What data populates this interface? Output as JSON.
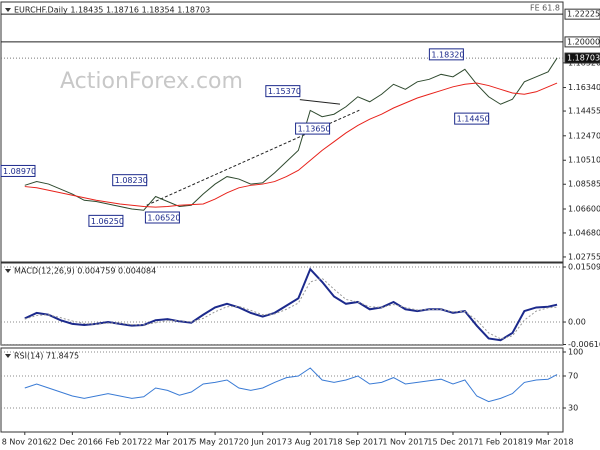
{
  "chart_data": [
    {
      "type": "line",
      "title": "EURCHF.Daily 1.18435 1.18716 1.18354 1.18703",
      "watermark": "ActionForex.com",
      "x": [
        0,
        8,
        16,
        24,
        32,
        40,
        48,
        56,
        64,
        72,
        80,
        88,
        96,
        104,
        112,
        120,
        128,
        136,
        144,
        152,
        160,
        168,
        176,
        184,
        192,
        200,
        208,
        216,
        224,
        232,
        240,
        248,
        256,
        264,
        272,
        280,
        288,
        296,
        304,
        312,
        320,
        328,
        336,
        344,
        352,
        358
      ],
      "xlim": [
        -16,
        362
      ],
      "ylim": [
        1.0235,
        1.232
      ],
      "yticks": [
        1.02755,
        {
          "value": 1.0468,
          "label": "1.04680"
        },
        {
          "value": 1.066,
          "label": "1.06600"
        },
        1.08585,
        {
          "value": 1.1051,
          "label": "1.10510"
        },
        {
          "value": 1.1247,
          "label": "1.12470"
        },
        1.14455,
        {
          "value": 1.1634,
          "label": "1.16340"
        },
        {
          "value": 1.1832,
          "label": "1.18320"
        }
      ],
      "series": [
        {
          "color": "#2f4a2f",
          "values": [
            1.085,
            1.088,
            1.086,
            1.082,
            1.078,
            1.073,
            1.072,
            1.07,
            1.068,
            1.066,
            1.065,
            1.076,
            1.072,
            1.068,
            1.069,
            1.078,
            1.086,
            1.092,
            1.09,
            1.086,
            1.087,
            1.095,
            1.104,
            1.113,
            1.145,
            1.14,
            1.142,
            1.148,
            1.156,
            1.152,
            1.158,
            1.166,
            1.162,
            1.168,
            1.17,
            1.174,
            1.172,
            1.178,
            1.166,
            1.156,
            1.15,
            1.154,
            1.168,
            1.172,
            1.176,
            1.18703
          ]
        },
        {
          "color": "#e8221b",
          "values": [
            1.084,
            1.083,
            1.081,
            1.079,
            1.077,
            1.075,
            1.073,
            1.0715,
            1.07,
            1.069,
            1.068,
            1.0675,
            1.068,
            1.069,
            1.0695,
            1.07,
            1.074,
            1.079,
            1.083,
            1.085,
            1.086,
            1.088,
            1.092,
            1.097,
            1.105,
            1.113,
            1.12,
            1.127,
            1.133,
            1.138,
            1.142,
            1.147,
            1.151,
            1.155,
            1.158,
            1.161,
            1.164,
            1.166,
            1.167,
            1.165,
            1.162,
            1.159,
            1.158,
            1.16,
            1.164,
            1.167
          ]
        }
      ],
      "levels": [
        {
          "value": 1.22225,
          "label": "1.22225",
          "note": "FE 61.8"
        },
        {
          "value": 1.2,
          "label": "1.20000"
        },
        {
          "value": 1.18703,
          "label": "1.18703",
          "current": true
        }
      ],
      "annotations": [
        {
          "x": 4,
          "value": 1.0897,
          "label": "1.08970",
          "pos": "above"
        },
        {
          "x": 82,
          "value": 1.0823,
          "label": "1.08230",
          "pos": "above"
        },
        {
          "x": 66,
          "value": 1.0625,
          "label": "1.06250",
          "pos": "below"
        },
        {
          "x": 104,
          "value": 1.0652,
          "label": "1.06520",
          "pos": "below"
        },
        {
          "x": 185,
          "value": 1.1537,
          "label": "1.15370",
          "pos": "above"
        },
        {
          "x": 205,
          "value": 1.1365,
          "label": "1.13650",
          "pos": "below"
        },
        {
          "x": 295,
          "value": 1.1832,
          "label": "1.18320",
          "pos": "above"
        },
        {
          "x": 312,
          "value": 1.1445,
          "label": "1.14450",
          "pos": "below"
        }
      ],
      "trendlines": [
        {
          "x": [
            82,
            225
          ],
          "y": [
            1.069,
            1.1452
          ],
          "style": "dashed"
        },
        {
          "x": [
            185,
            212
          ],
          "y": [
            1.1537,
            1.1501
          ],
          "style": "solid"
        }
      ]
    },
    {
      "type": "line",
      "title": "MACD(12,26,9) 0.004759 0.004084",
      "x": [
        0,
        8,
        16,
        24,
        32,
        40,
        48,
        56,
        64,
        72,
        80,
        88,
        96,
        104,
        112,
        120,
        128,
        136,
        144,
        152,
        160,
        168,
        176,
        184,
        192,
        200,
        208,
        216,
        224,
        232,
        240,
        248,
        256,
        264,
        272,
        280,
        288,
        296,
        304,
        312,
        320,
        328,
        336,
        344,
        352,
        358
      ],
      "xlim": [
        -16,
        362
      ],
      "ylim": [
        -0.0063,
        0.01619
      ],
      "yticks": [
        -0.006163,
        {
          "value": 0,
          "label": "0.00"
        },
        0.015092
      ],
      "grid": true,
      "series": [
        {
          "color": "#1c2a8c",
          "width": 2,
          "values": [
            0.001,
            0.0025,
            0.002,
            0.0005,
            -0.0005,
            -0.0008,
            -0.0005,
            0,
            -0.0005,
            -0.001,
            -0.0008,
            0.0005,
            0.0008,
            0.0002,
            -0.0002,
            0.002,
            0.004,
            0.005,
            0.004,
            0.0025,
            0.0015,
            0.0025,
            0.0045,
            0.0065,
            0.0145,
            0.011,
            0.007,
            0.005,
            0.0055,
            0.0035,
            0.004,
            0.0055,
            0.0035,
            0.003,
            0.0035,
            0.0035,
            0.0025,
            0.003,
            -0.001,
            -0.0045,
            -0.005,
            -0.003,
            0.003,
            0.004,
            0.0042,
            0.004759
          ]
        },
        {
          "color": "#999999",
          "width": 1,
          "dash": true,
          "values": [
            0.0008,
            0.0018,
            0.002,
            0.0012,
            0.0003,
            -0.0004,
            -0.0006,
            -0.0003,
            -0.0003,
            -0.0007,
            -0.0008,
            -0.0002,
            0.0004,
            0.0004,
            0,
            0.001,
            0.0028,
            0.0042,
            0.0043,
            0.0032,
            0.002,
            0.0022,
            0.0035,
            0.0052,
            0.011,
            0.012,
            0.009,
            0.0062,
            0.0055,
            0.0042,
            0.004,
            0.0048,
            0.004,
            0.0033,
            0.0034,
            0.0035,
            0.0028,
            0.0029,
            0.0005,
            -0.003,
            -0.0046,
            -0.0038,
            0.0005,
            0.003,
            0.0039,
            0.004084
          ]
        }
      ]
    },
    {
      "type": "line",
      "title": "RSI(14) 71.8475",
      "x": [
        0,
        8,
        16,
        24,
        32,
        40,
        48,
        56,
        64,
        72,
        80,
        88,
        96,
        104,
        112,
        120,
        128,
        136,
        144,
        152,
        160,
        168,
        176,
        184,
        192,
        200,
        208,
        216,
        224,
        232,
        240,
        248,
        256,
        264,
        272,
        280,
        288,
        296,
        304,
        312,
        320,
        328,
        336,
        344,
        352,
        358
      ],
      "xlim": [
        -16,
        362
      ],
      "ylim": [
        0,
        105
      ],
      "yticks": [
        30,
        70,
        100
      ],
      "grid": true,
      "xticks": [
        {
          "value": 0,
          "label": "8 Nov 2016"
        },
        {
          "value": 32,
          "label": "22 Dec 2016"
        },
        {
          "value": 64,
          "label": "6 Feb 2017"
        },
        {
          "value": 96,
          "label": "22 Mar 2017"
        },
        {
          "value": 128,
          "label": "5 May 2017"
        },
        {
          "value": 160,
          "label": "20 Jun 2017"
        },
        {
          "value": 192,
          "label": "3 Aug 2017"
        },
        {
          "value": 224,
          "label": "18 Sep 2017"
        },
        {
          "value": 256,
          "label": "1 Nov 2017"
        },
        {
          "value": 288,
          "label": "15 Dec 2017"
        },
        {
          "value": 320,
          "label": "1 Feb 2018"
        },
        {
          "value": 352,
          "label": "19 Mar 2018"
        }
      ],
      "series": [
        {
          "color": "#3a7bd5",
          "width": 1,
          "values": [
            55,
            60,
            55,
            50,
            45,
            42,
            45,
            48,
            45,
            42,
            44,
            55,
            52,
            46,
            50,
            60,
            62,
            65,
            55,
            52,
            55,
            62,
            68,
            70,
            80,
            65,
            62,
            65,
            70,
            60,
            62,
            68,
            60,
            62,
            64,
            66,
            60,
            65,
            45,
            38,
            42,
            48,
            62,
            65,
            66,
            71.8475
          ]
        }
      ]
    }
  ]
}
